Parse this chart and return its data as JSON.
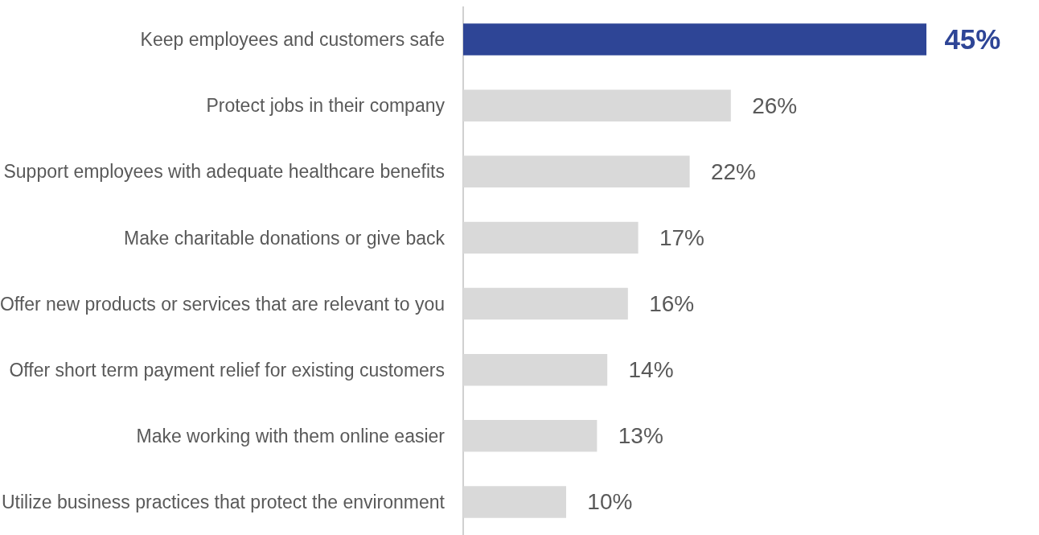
{
  "chart_data": {
    "type": "bar",
    "orientation": "horizontal",
    "categories": [
      "Keep employees and customers safe",
      "Protect jobs in their company",
      "Support employees with adequate healthcare benefits",
      "Make charitable donations or give back",
      "Offer new products or services that are relevant to you",
      "Offer short term payment relief for existing customers",
      "Make working with them online easier",
      "Utilize business practices that protect the environment"
    ],
    "values": [
      45,
      26,
      22,
      17,
      16,
      14,
      13,
      10
    ],
    "value_labels": [
      "45%",
      "26%",
      "22%",
      "17%",
      "16%",
      "14%",
      "13%",
      "10%"
    ],
    "colors": [
      "#2e4596",
      "#d9d9d9",
      "#d9d9d9",
      "#d9d9d9",
      "#d9d9d9",
      "#d9d9d9",
      "#d9d9d9",
      "#d9d9d9"
    ],
    "xlim": [
      0,
      45
    ],
    "tick_labels": "y"
  }
}
